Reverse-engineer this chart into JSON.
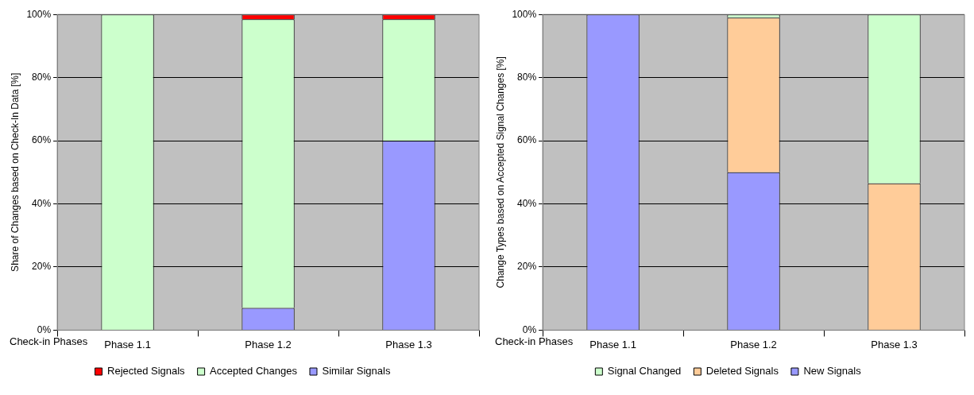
{
  "chart_data": [
    {
      "type": "bar",
      "stacked": true,
      "xlabel": "Check-in Phases",
      "ylabel": "Share of Changes based on Check-In Data [%]",
      "categories": [
        "Phase 1.1",
        "Phase 1.2",
        "Phase 1.3"
      ],
      "ylim": [
        0,
        100
      ],
      "yticks": [
        {
          "value": 0,
          "label": "0%"
        },
        {
          "value": 20,
          "label": "20%"
        },
        {
          "value": 40,
          "label": "40%"
        },
        {
          "value": 60,
          "label": "60%"
        },
        {
          "value": 80,
          "label": "80%"
        },
        {
          "value": 100,
          "label": "100%"
        }
      ],
      "grid": "y",
      "legend": "bottom",
      "series": [
        {
          "name": "Similar Signals",
          "color": "#9999ff",
          "values": [
            0,
            7,
            60
          ]
        },
        {
          "name": "Accepted Changes",
          "color": "#ccffcc",
          "values": [
            100,
            91.5,
            38.5
          ]
        },
        {
          "name": "Rejected Signals",
          "color": "#ff0000",
          "values": [
            0,
            1.5,
            1.5
          ]
        }
      ]
    },
    {
      "type": "bar",
      "stacked": true,
      "xlabel": "Check-in Phases",
      "ylabel": "Change Types based on Accepted Signal Changes [%]",
      "categories": [
        "Phase 1.1",
        "Phase 1.2",
        "Phase 1.3"
      ],
      "ylim": [
        0,
        100
      ],
      "yticks": [
        {
          "value": 0,
          "label": "0%"
        },
        {
          "value": 20,
          "label": "20%"
        },
        {
          "value": 40,
          "label": "40%"
        },
        {
          "value": 60,
          "label": "60%"
        },
        {
          "value": 80,
          "label": "80%"
        },
        {
          "value": 100,
          "label": "100%"
        }
      ],
      "grid": "y",
      "legend": "bottom",
      "series": [
        {
          "name": "New Signals",
          "color": "#9999ff",
          "values": [
            100,
            50,
            0
          ]
        },
        {
          "name": "Deleted Signals",
          "color": "#ffcc99",
          "values": [
            0,
            49,
            46.5
          ]
        },
        {
          "name": "Signal Changed",
          "color": "#ccffcc",
          "values": [
            0,
            1,
            53.5
          ]
        }
      ]
    }
  ]
}
